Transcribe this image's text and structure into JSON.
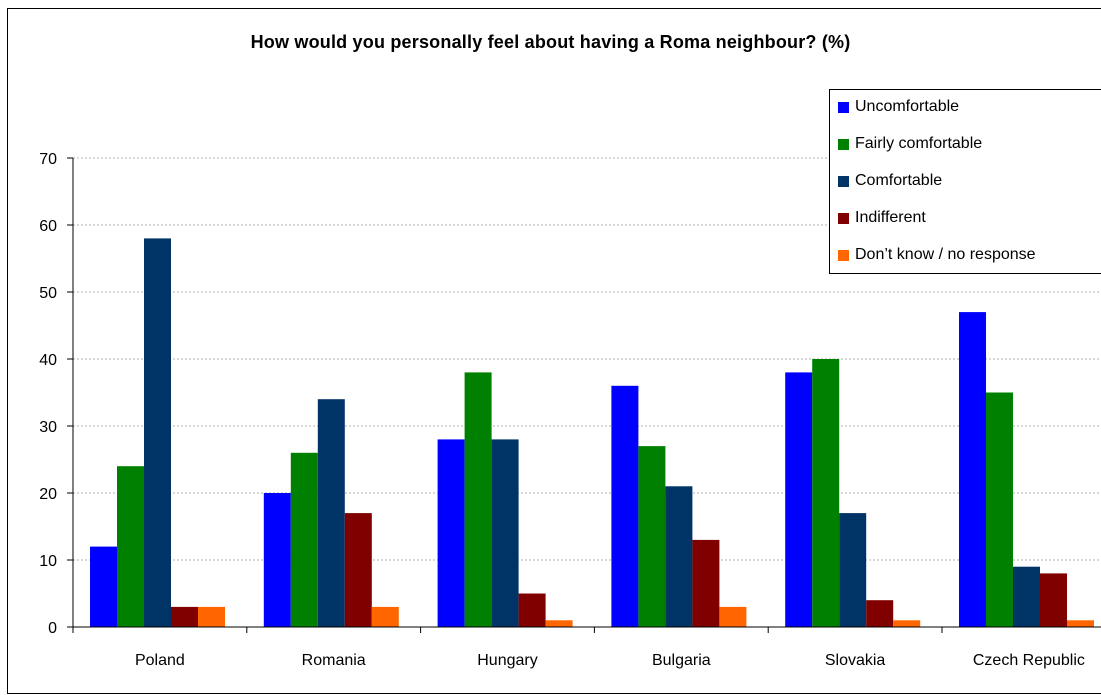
{
  "chart_data": {
    "type": "bar",
    "title": "How would you personally feel about having a Roma neighbour? (%)",
    "xlabel": "",
    "ylabel": "",
    "categories": [
      "Poland",
      "Romania",
      "Hungary",
      "Bulgaria",
      "Slovakia",
      "Czech Republic"
    ],
    "ylim": [
      0,
      70
    ],
    "yticks": [
      0,
      10,
      20,
      30,
      40,
      50,
      60,
      70
    ],
    "grid": true,
    "legend_position": "top-right",
    "series": [
      {
        "name": "Uncomfortable",
        "color": "#0000ff",
        "values": [
          12,
          20,
          28,
          36,
          38,
          47
        ]
      },
      {
        "name": "Fairly comfortable",
        "color": "#008000",
        "values": [
          24,
          26,
          38,
          27,
          40,
          35
        ]
      },
      {
        "name": "Comfortable",
        "color": "#003366",
        "values": [
          58,
          34,
          28,
          21,
          17,
          9
        ]
      },
      {
        "name": "Indifferent",
        "color": "#800000",
        "values": [
          3,
          17,
          5,
          13,
          4,
          8
        ]
      },
      {
        "name": "Don’t know  / no response",
        "color": "#ff6600",
        "values": [
          3,
          3,
          1,
          3,
          1,
          1
        ]
      }
    ]
  }
}
